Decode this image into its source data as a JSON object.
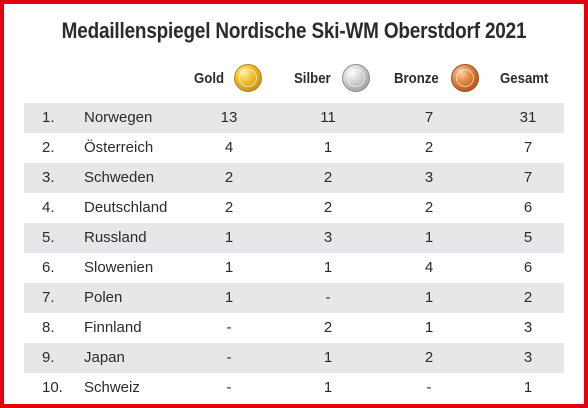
{
  "title": "Medaillenspiegel Nordische Ski-WM Oberstdorf 2021",
  "columns": {
    "gold": "Gold",
    "silver": "Silber",
    "bronze": "Bronze",
    "total": "Gesamt"
  },
  "medal_icons": {
    "gold": "gold-medal-icon",
    "silver": "silver-medal-icon",
    "bronze": "bronze-medal-icon"
  },
  "colors": {
    "frame_border": "#e3000f",
    "row_shade": "#e6e7e8",
    "text": "#2b2b2b"
  },
  "rows": [
    {
      "rank": "1.",
      "country": "Norwegen",
      "gold": "13",
      "silver": "11",
      "bronze": "7",
      "total": "31"
    },
    {
      "rank": "2.",
      "country": "Österreich",
      "gold": "4",
      "silver": "1",
      "bronze": "2",
      "total": "7"
    },
    {
      "rank": "3.",
      "country": "Schweden",
      "gold": "2",
      "silver": "2",
      "bronze": "3",
      "total": "7"
    },
    {
      "rank": "4.",
      "country": "Deutschland",
      "gold": "2",
      "silver": "2",
      "bronze": "2",
      "total": "6"
    },
    {
      "rank": "5.",
      "country": "Russland",
      "gold": "1",
      "silver": "3",
      "bronze": "1",
      "total": "5"
    },
    {
      "rank": "6.",
      "country": "Slowenien",
      "gold": "1",
      "silver": "1",
      "bronze": "4",
      "total": "6"
    },
    {
      "rank": "7.",
      "country": "Polen",
      "gold": "1",
      "silver": "-",
      "bronze": "1",
      "total": "2"
    },
    {
      "rank": "8.",
      "country": "Finnland",
      "gold": "-",
      "silver": "2",
      "bronze": "1",
      "total": "3"
    },
    {
      "rank": "9.",
      "country": "Japan",
      "gold": "-",
      "silver": "1",
      "bronze": "2",
      "total": "3"
    },
    {
      "rank": "10.",
      "country": "Schweiz",
      "gold": "-",
      "silver": "1",
      "bronze": "-",
      "total": "1"
    }
  ]
}
